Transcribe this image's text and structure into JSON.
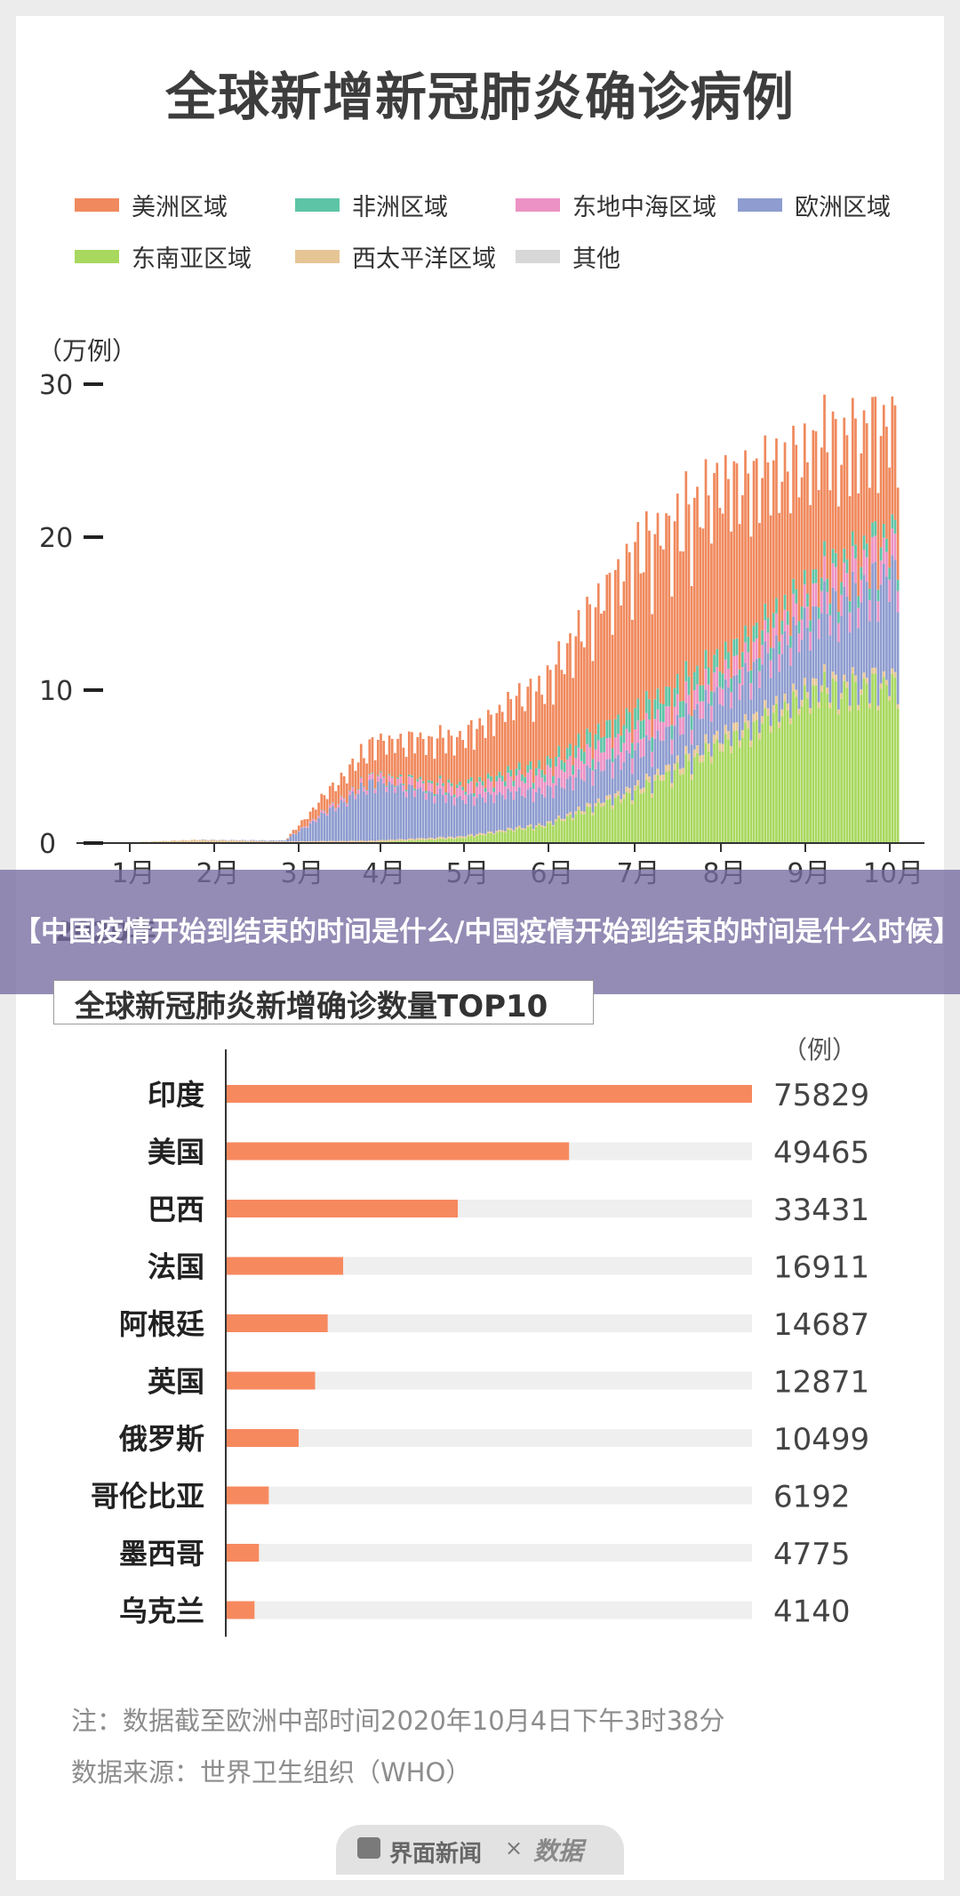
{
  "page": {
    "main_title": "全球新增新冠肺炎确诊病例",
    "overlay_text": "【中国疫情开始到结束的时间是什么/中国疫情开始到结束的时间是什么时候】",
    "note": "注：数据截至欧洲中部时间2020年10月4日下午3时38分",
    "source": "数据来源：世界卫生组织（WHO）",
    "footer_logo": "界面新闻",
    "footer_times": "×",
    "footer_partner": "数据"
  },
  "colors": {
    "americas": "#f0895d",
    "africa": "#5ec4a6",
    "east_med": "#ec92c4",
    "europe": "#8e9ccf",
    "se_asia": "#a8d85e",
    "w_pacific": "#e6c594",
    "other": "#d7d7d7",
    "bar_accent": "#f7895f",
    "bar_track": "#efefef"
  },
  "chart_data": [
    {
      "type": "area",
      "title": "全球新增新冠肺炎确诊病例",
      "ylabel": "（万例）",
      "xlabel": "",
      "ylim": [
        0,
        30
      ],
      "yticks": [
        "0",
        "10",
        "20",
        "30"
      ],
      "xticks": [
        "1月",
        "2月",
        "3月",
        "4月",
        "5月",
        "6月",
        "7月",
        "8月",
        "9月",
        "10月"
      ],
      "stacked": true,
      "x_label_tail": "2020年",
      "legend_position": "top",
      "x": [
        "1月",
        "2月",
        "3月",
        "4月",
        "5月",
        "6月",
        "7月",
        "8月",
        "9月",
        "10月"
      ],
      "series": [
        {
          "name": "东南亚区域",
          "color_key": "se_asia",
          "values": [
            0,
            0,
            0,
            0.05,
            0.3,
            1.1,
            3.0,
            6.0,
            9.0,
            9.5
          ]
        },
        {
          "name": "西太平洋区域",
          "color_key": "w_pacific",
          "values": [
            0,
            0.2,
            0.1,
            0.1,
            0.1,
            0.1,
            0.3,
            0.5,
            0.4,
            0.3
          ]
        },
        {
          "name": "欧洲区域",
          "color_key": "europe",
          "values": [
            0,
            0,
            0.05,
            3.5,
            2.3,
            2.0,
            2.0,
            2.5,
            4.0,
            6.5
          ]
        },
        {
          "name": "东地中海区域",
          "color_key": "east_med",
          "values": [
            0,
            0,
            0,
            0.3,
            0.6,
            1.1,
            1.2,
            1.1,
            1.3,
            1.5
          ]
        },
        {
          "name": "非洲区域",
          "color_key": "africa",
          "values": [
            0,
            0,
            0,
            0.05,
            0.2,
            0.5,
            1.2,
            1.0,
            0.8,
            0.8
          ]
        },
        {
          "name": "美洲区域",
          "color_key": "americas",
          "values": [
            0,
            0,
            0,
            2.0,
            2.9,
            5.0,
            9.5,
            10.5,
            8.0,
            6.5
          ]
        },
        {
          "name": "其他",
          "color_key": "other",
          "values": [
            0,
            0,
            0,
            0,
            0,
            0,
            0,
            0,
            0,
            0
          ]
        }
      ]
    },
    {
      "type": "bar",
      "title": "全球新冠肺炎新增确诊数量TOP10",
      "unit_label": "（例）",
      "categories": [
        "印度",
        "美国",
        "巴西",
        "法国",
        "阿根廷",
        "英国",
        "俄罗斯",
        "哥伦比亚",
        "墨西哥",
        "乌克兰"
      ],
      "values": [
        75829,
        49465,
        33431,
        16911,
        14687,
        12871,
        10499,
        6192,
        4775,
        4140
      ],
      "value_labels": [
        "75829",
        "49465",
        "33431",
        "16911",
        "14687",
        "12871",
        "10499",
        "6192",
        "4775",
        "4140"
      ],
      "xlim": [
        0,
        75829
      ]
    }
  ]
}
